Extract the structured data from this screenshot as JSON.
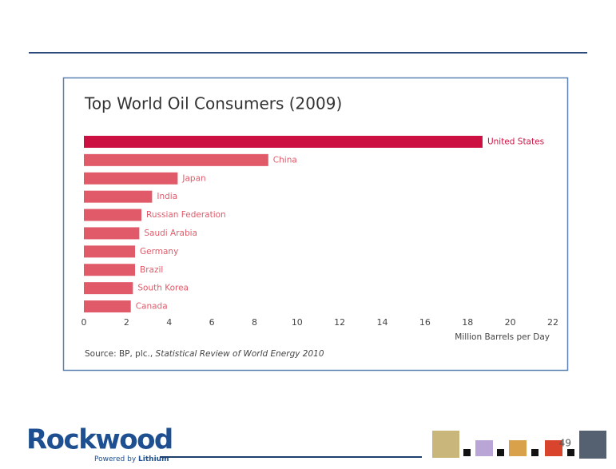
{
  "chart_data": {
    "type": "bar",
    "orientation": "horizontal",
    "title": "Top World Oil Consumers (2009)",
    "categories": [
      "United States",
      "China",
      "Japan",
      "India",
      "Russian Federation",
      "Saudi Arabia",
      "Germany",
      "Brazil",
      "South Korea",
      "Canada"
    ],
    "values": [
      18.7,
      8.65,
      4.4,
      3.2,
      2.7,
      2.6,
      2.4,
      2.4,
      2.3,
      2.2
    ],
    "colors": [
      "#cc1142",
      "#e05a69",
      "#e05a69",
      "#e05a69",
      "#e05a69",
      "#e05a69",
      "#e05a69",
      "#e05a69",
      "#e05a69",
      "#e05a69"
    ],
    "xlim": [
      0,
      22
    ],
    "xticks": [
      0,
      2,
      4,
      6,
      8,
      10,
      12,
      14,
      16,
      18,
      20,
      22
    ],
    "xlabel": "Million Barrels per Day",
    "source_prefix": "Source: BP, plc.,",
    "source_title": "Statistical Review of World Energy 2010"
  },
  "footer": {
    "logo": "Rockwood",
    "tagline_prefix": "Powered by",
    "tagline_brand": "Lithium",
    "page_number": "49"
  }
}
